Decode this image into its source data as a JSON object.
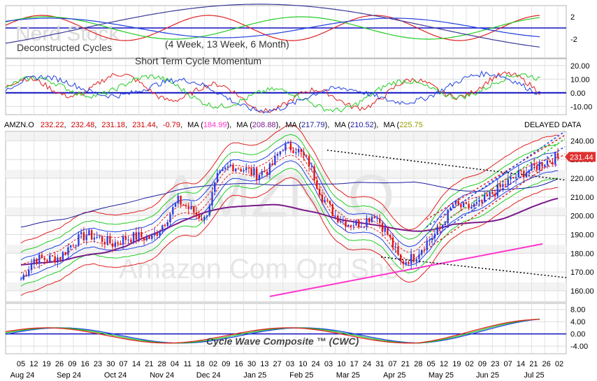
{
  "panels": {
    "top": {
      "watermark": "Nerd Stock",
      "title": "Deconstructed Cycles",
      "subtitle": "(4 Week, 13 Week, 6 Month)",
      "ticks": [
        "2",
        "-2"
      ],
      "series": [
        "4 Week",
        "13 Week",
        "6 Month"
      ]
    },
    "momentum": {
      "title": "Short Term Cycle Momentum",
      "ticks": [
        "20.00",
        "10.00",
        "0.00",
        "-10.00"
      ]
    },
    "cwc": {
      "title": "Cycle Wave Composite ™ (CWC)",
      "ticks": [
        "8.00",
        "4.00",
        "0.00",
        "-4.00"
      ]
    }
  },
  "header": {
    "symbol": "AMZN.O",
    "open": "232.22",
    "high": "232.48",
    "low": "231.18",
    "close": "231.44",
    "change": "-0.79",
    "ma_label": "MA",
    "ma1": "184.99",
    "ma2": "208.88",
    "ma3": "217.79",
    "ma4": "210.52",
    "ma5": "225.75",
    "delayed": "DELAYED DATA"
  },
  "main": {
    "watermark_symbol": "AMZN.O",
    "watermark_name": "Amazon Com Ord Shs",
    "last_price_label": "231.44",
    "colors": {
      "up": "#2b3fe0",
      "down": "#e01414",
      "ma1": "#ff33cc",
      "ma2": "#7a1a8a",
      "ma3": "#1a1aa0"
    }
  },
  "x_axis": {
    "day_labels": [
      "05",
      "12",
      "19",
      "26",
      "09",
      "16",
      "23",
      "30",
      "07",
      "14",
      "21",
      "28",
      "04",
      "11",
      "18",
      "02",
      "09",
      "16",
      "30",
      "13",
      "27",
      "03",
      "10",
      "24",
      "03",
      "10",
      "17",
      "24",
      "31",
      "07",
      "21",
      "28",
      "05",
      "12",
      "19",
      "02",
      "09",
      "23",
      "07",
      "14",
      "21",
      "26",
      "02"
    ],
    "month_labels": [
      "Aug 24",
      "Sep 24",
      "Oct 24",
      "Nov 24",
      "Dec 24",
      "Jan 25",
      "Feb 25",
      "Mar 25",
      "Apr 25",
      "May 25",
      "Jun 25",
      "Jul 25"
    ]
  },
  "chart_data": {
    "type": "candlestick",
    "y_ticks": [
      160,
      170,
      180,
      190,
      200,
      210,
      220,
      230,
      240
    ],
    "ylim": [
      154,
      245
    ],
    "last_price": 231.44,
    "weekly_close": [
      {
        "week": "2024-08-05",
        "close": 166
      },
      {
        "week": "2024-08-12",
        "close": 177
      },
      {
        "week": "2024-08-19",
        "close": 177
      },
      {
        "week": "2024-08-26",
        "close": 178
      },
      {
        "week": "2024-09-09",
        "close": 186
      },
      {
        "week": "2024-09-16",
        "close": 190
      },
      {
        "week": "2024-09-23",
        "close": 188
      },
      {
        "week": "2024-09-30",
        "close": 185
      },
      {
        "week": "2024-10-07",
        "close": 188
      },
      {
        "week": "2024-10-14",
        "close": 189
      },
      {
        "week": "2024-10-21",
        "close": 188
      },
      {
        "week": "2024-10-28",
        "close": 197
      },
      {
        "week": "2024-11-04",
        "close": 208
      },
      {
        "week": "2024-11-11",
        "close": 203
      },
      {
        "week": "2024-11-18",
        "close": 198
      },
      {
        "week": "2024-12-02",
        "close": 220
      },
      {
        "week": "2024-12-09",
        "close": 227
      },
      {
        "week": "2024-12-16",
        "close": 225
      },
      {
        "week": "2024-12-30",
        "close": 222
      },
      {
        "week": "2025-01-13",
        "close": 225
      },
      {
        "week": "2025-01-27",
        "close": 237
      },
      {
        "week": "2025-02-03",
        "close": 236
      },
      {
        "week": "2025-02-10",
        "close": 228
      },
      {
        "week": "2025-02-24",
        "close": 210
      },
      {
        "week": "2025-03-03",
        "close": 200
      },
      {
        "week": "2025-03-10",
        "close": 196
      },
      {
        "week": "2025-03-17",
        "close": 196
      },
      {
        "week": "2025-03-24",
        "close": 201
      },
      {
        "week": "2025-03-31",
        "close": 190
      },
      {
        "week": "2025-04-07",
        "close": 175
      },
      {
        "week": "2025-04-21",
        "close": 178
      },
      {
        "week": "2025-04-28",
        "close": 186
      },
      {
        "week": "2025-05-05",
        "close": 193
      },
      {
        "week": "2025-05-12",
        "close": 206
      },
      {
        "week": "2025-05-19",
        "close": 204
      },
      {
        "week": "2025-06-02",
        "close": 206
      },
      {
        "week": "2025-06-09",
        "close": 212
      },
      {
        "week": "2025-06-23",
        "close": 217
      },
      {
        "week": "2025-07-07",
        "close": 222
      },
      {
        "week": "2025-07-14",
        "close": 225
      },
      {
        "week": "2025-07-21",
        "close": 229
      },
      {
        "week": "2025-07-26",
        "close": 231
      }
    ],
    "moving_averages": [
      {
        "name": "MA 184.99",
        "value": 184.99,
        "color": "#ff33cc"
      },
      {
        "name": "MA 208.88",
        "value": 208.88,
        "color": "#7a1a8a"
      },
      {
        "name": "MA 217.79",
        "value": 217.79,
        "color": "#1a1aa0"
      },
      {
        "name": "MA 210.52",
        "value": 210.52,
        "color": "#1a1aa0"
      },
      {
        "name": "MA 225.75",
        "value": 225.75,
        "color": "#9a9a00"
      }
    ],
    "momentum_ylim": [
      -16,
      25
    ],
    "momentum_ticks": [
      20,
      10,
      0,
      -10
    ],
    "cwc_ylim": [
      -6.5,
      10
    ],
    "cwc_ticks": [
      8,
      4,
      0,
      -4
    ]
  }
}
